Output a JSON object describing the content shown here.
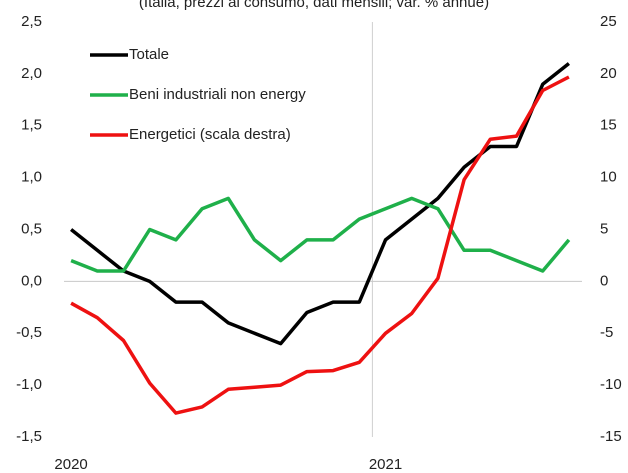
{
  "chart_data": {
    "type": "line",
    "subtitle": "(Italia, prezzi al consumo, dati mensili; var. % annue)",
    "categories": [
      "2020",
      null,
      null,
      null,
      null,
      null,
      null,
      null,
      null,
      null,
      null,
      null,
      "2021",
      null,
      null,
      null,
      null,
      null,
      null,
      null
    ],
    "series": [
      {
        "name": "Totale",
        "color": "#000000",
        "values": [
          0.5,
          0.3,
          0.1,
          0.0,
          -0.2,
          -0.2,
          -0.4,
          -0.5,
          -0.6,
          -0.3,
          -0.2,
          -0.2,
          0.4,
          0.6,
          0.8,
          1.1,
          1.3,
          1.3,
          1.9,
          2.1
        ]
      },
      {
        "name": "Beni industriali non energy",
        "color": "#1fb04a",
        "values": [
          0.2,
          0.1,
          0.1,
          0.5,
          0.4,
          0.7,
          0.8,
          0.4,
          0.2,
          0.4,
          0.4,
          0.6,
          0.7,
          0.8,
          0.7,
          0.3,
          0.3,
          0.2,
          0.1,
          0.4
        ]
      },
      {
        "name": "Energetici (scala destra)",
        "color": "#ee1111",
        "axis": "y2",
        "values": [
          -2.1,
          -3.5,
          -5.7,
          -9.8,
          -12.7,
          -12.1,
          -10.4,
          -10.2,
          -10.0,
          -8.7,
          -8.6,
          -7.8,
          -5.0,
          -3.1,
          0.3,
          9.8,
          13.7,
          14.0,
          18.4,
          19.7
        ]
      }
    ],
    "ylim": [
      -1.5,
      2.5
    ],
    "yticks": [
      {
        "value": -1.5,
        "label": "-1,5"
      },
      {
        "value": -1.0,
        "label": "-1,0"
      },
      {
        "value": -0.5,
        "label": "-0,5"
      },
      {
        "value": 0,
        "label": "0,0"
      },
      {
        "value": 0.5,
        "label": "0,5"
      },
      {
        "value": 1.0,
        "label": "1,0"
      },
      {
        "value": 1.5,
        "label": "1,5"
      },
      {
        "value": 2.0,
        "label": "2,0"
      },
      {
        "value": 2.5,
        "label": "2,5"
      }
    ],
    "y2lim": [
      -15,
      25
    ],
    "y2ticks": [
      -15,
      -10,
      -5,
      0,
      5,
      10,
      15,
      20,
      25
    ],
    "legend": "upper left"
  }
}
